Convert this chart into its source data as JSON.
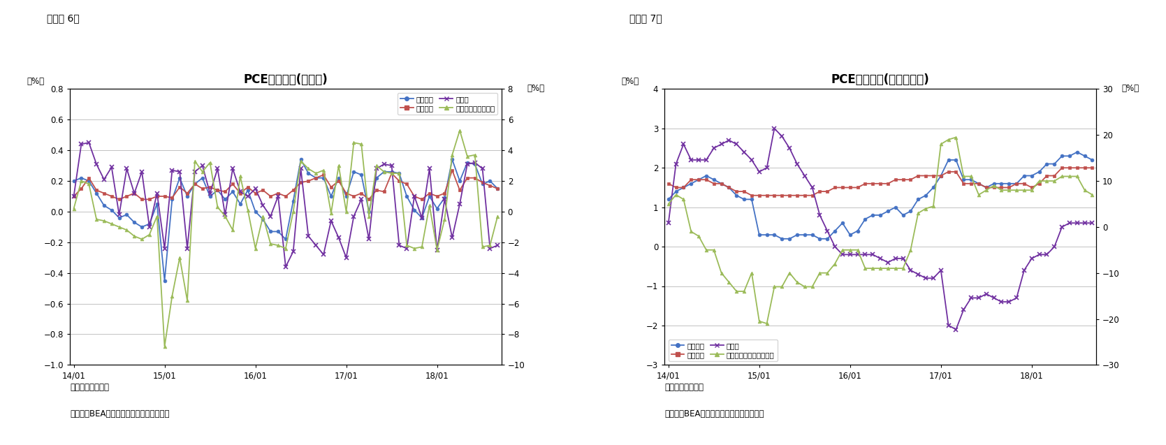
{
  "fig6_title": "PCE価格指数(前月比)",
  "fig7_title": "PCE価格指数(前年同月比)",
  "fig6_label": "（図表 6）",
  "fig7_label": "（図表 7）",
  "note": "（注）季節調整済",
  "source": "（資料）BEAよりニッセイ基礎研究所作成",
  "xlabel_ticks": [
    "14/01",
    "15/01",
    "16/01",
    "17/01",
    "18/01"
  ],
  "fig6": {
    "ylim_left": [
      -1.0,
      0.8
    ],
    "ylim_right": [
      -10,
      8
    ],
    "yticks_left": [
      -1.0,
      -0.8,
      -0.6,
      -0.4,
      -0.2,
      0.0,
      0.2,
      0.4,
      0.6,
      0.8
    ],
    "yticks_right": [
      -10,
      -8,
      -6,
      -4,
      -2,
      0,
      2,
      4,
      6,
      8
    ],
    "legend": [
      "総合指数",
      "コア指数",
      "食料品",
      "エネルギー（右軸）"
    ],
    "colors": [
      "#4472C4",
      "#C0504D",
      "#7030A0",
      "#9BBB59"
    ],
    "total": [
      0.2,
      0.22,
      0.2,
      0.12,
      0.04,
      0.01,
      -0.04,
      -0.02,
      -0.07,
      -0.1,
      -0.08,
      0.05,
      -0.45,
      0.08,
      0.22,
      0.1,
      0.18,
      0.22,
      0.1,
      0.14,
      0.08,
      0.13,
      0.05,
      0.14,
      0.0,
      -0.05,
      -0.13,
      -0.13,
      -0.18,
      0.07,
      0.34,
      0.25,
      0.22,
      0.22,
      0.1,
      0.22,
      0.1,
      0.26,
      0.24,
      0.0,
      0.22,
      0.26,
      0.26,
      0.25,
      0.1,
      0.01,
      -0.04,
      0.1,
      0.02,
      0.09,
      0.34,
      0.2,
      0.32,
      0.31,
      0.18,
      0.2,
      0.15
    ],
    "core": [
      0.1,
      0.15,
      0.22,
      0.14,
      0.12,
      0.1,
      0.08,
      0.1,
      0.12,
      0.08,
      0.08,
      0.1,
      0.1,
      0.09,
      0.16,
      0.12,
      0.18,
      0.15,
      0.16,
      0.14,
      0.13,
      0.18,
      0.12,
      0.16,
      0.12,
      0.14,
      0.1,
      0.12,
      0.1,
      0.14,
      0.19,
      0.2,
      0.22,
      0.24,
      0.16,
      0.2,
      0.12,
      0.1,
      0.12,
      0.08,
      0.14,
      0.13,
      0.25,
      0.2,
      0.18,
      0.1,
      0.08,
      0.12,
      0.1,
      0.12,
      0.27,
      0.14,
      0.22,
      0.22,
      0.19,
      0.17,
      0.15
    ],
    "food": [
      0.1,
      0.44,
      0.45,
      0.31,
      0.21,
      0.29,
      -0.02,
      0.28,
      0.12,
      0.26,
      -0.1,
      0.12,
      -0.24,
      0.27,
      0.26,
      -0.24,
      0.26,
      0.3,
      0.12,
      0.28,
      -0.02,
      0.28,
      0.13,
      0.1,
      0.15,
      0.04,
      -0.03,
      0.1,
      -0.36,
      -0.26,
      0.28,
      -0.16,
      -0.22,
      -0.28,
      -0.06,
      -0.17,
      -0.3,
      -0.03,
      0.08,
      -0.18,
      0.28,
      0.31,
      0.3,
      -0.22,
      -0.24,
      0.1,
      -0.04,
      0.28,
      -0.25,
      0.08,
      -0.17,
      0.05,
      0.31,
      0.32,
      0.28,
      -0.24,
      -0.22
    ],
    "energy_right": [
      0.2,
      2.0,
      1.8,
      -0.5,
      -0.6,
      -0.8,
      -1.0,
      -1.2,
      -1.6,
      -1.8,
      -1.5,
      -0.3,
      -8.8,
      -5.5,
      -3.0,
      -5.8,
      3.3,
      2.6,
      3.2,
      0.3,
      -0.3,
      -1.2,
      2.3,
      0.1,
      -2.4,
      -0.3,
      -2.1,
      -2.2,
      -2.4,
      0.0,
      3.3,
      2.8,
      2.5,
      2.7,
      -0.1,
      3.0,
      0.0,
      4.5,
      4.4,
      -0.3,
      3.0,
      2.6,
      2.5,
      2.5,
      -2.2,
      -2.4,
      -2.3,
      0.4,
      -2.5,
      -0.5,
      3.7,
      5.3,
      3.6,
      3.7,
      -2.3,
      -2.2,
      -0.3
    ]
  },
  "fig7": {
    "ylim_left": [
      -3,
      4
    ],
    "ylim_right": [
      -30,
      30
    ],
    "yticks_left": [
      -3,
      -2,
      -1,
      0,
      1,
      2,
      3,
      4
    ],
    "yticks_right": [
      -30,
      -20,
      -10,
      0,
      10,
      20,
      30
    ],
    "legend": [
      "総合指数",
      "コア指数",
      "食料品",
      "エネルギー関連（右軸）"
    ],
    "colors": [
      "#4472C4",
      "#C0504D",
      "#7030A0",
      "#9BBB59"
    ],
    "total": [
      1.2,
      1.4,
      1.5,
      1.6,
      1.7,
      1.8,
      1.7,
      1.6,
      1.5,
      1.3,
      1.2,
      1.2,
      0.3,
      0.3,
      0.3,
      0.2,
      0.2,
      0.3,
      0.3,
      0.3,
      0.2,
      0.2,
      0.4,
      0.6,
      0.3,
      0.4,
      0.7,
      0.8,
      0.8,
      0.9,
      1.0,
      0.8,
      0.9,
      1.2,
      1.3,
      1.5,
      1.8,
      2.2,
      2.2,
      1.7,
      1.7,
      1.6,
      1.5,
      1.6,
      1.6,
      1.6,
      1.6,
      1.8,
      1.8,
      1.9,
      2.1,
      2.1,
      2.3,
      2.3,
      2.4,
      2.3,
      2.2
    ],
    "core": [
      1.6,
      1.5,
      1.5,
      1.7,
      1.7,
      1.7,
      1.6,
      1.6,
      1.5,
      1.4,
      1.4,
      1.3,
      1.3,
      1.3,
      1.3,
      1.3,
      1.3,
      1.3,
      1.3,
      1.3,
      1.4,
      1.4,
      1.5,
      1.5,
      1.5,
      1.5,
      1.6,
      1.6,
      1.6,
      1.6,
      1.7,
      1.7,
      1.7,
      1.8,
      1.8,
      1.8,
      1.8,
      1.9,
      1.9,
      1.6,
      1.6,
      1.6,
      1.5,
      1.5,
      1.5,
      1.5,
      1.6,
      1.6,
      1.5,
      1.6,
      1.8,
      1.8,
      2.0,
      2.0,
      2.0,
      2.0,
      2.0
    ],
    "food": [
      0.6,
      2.1,
      2.6,
      2.2,
      2.2,
      2.2,
      2.5,
      2.6,
      2.7,
      2.6,
      2.4,
      2.2,
      1.9,
      2.0,
      3.0,
      2.8,
      2.5,
      2.1,
      1.8,
      1.5,
      0.8,
      0.4,
      0.0,
      -0.2,
      -0.2,
      -0.2,
      -0.2,
      -0.2,
      -0.3,
      -0.4,
      -0.3,
      -0.3,
      -0.6,
      -0.7,
      -0.8,
      -0.8,
      -0.6,
      -2.0,
      -2.1,
      -1.6,
      -1.3,
      -1.3,
      -1.2,
      -1.3,
      -1.4,
      -1.4,
      -1.3,
      -0.6,
      -0.3,
      -0.2,
      -0.2,
      0.0,
      0.5,
      0.6,
      0.6,
      0.6,
      0.6
    ],
    "energy_right": [
      5.0,
      7.0,
      6.0,
      -1.0,
      -2.0,
      -5.0,
      -5.0,
      -10.0,
      -12.0,
      -14.0,
      -14.0,
      -10.0,
      -20.5,
      -21.0,
      -13.0,
      -13.0,
      -10.0,
      -12.0,
      -13.0,
      -13.0,
      -10.0,
      -10.0,
      -8.0,
      -5.0,
      -5.0,
      -5.0,
      -9.0,
      -9.0,
      -9.0,
      -9.0,
      -9.0,
      -9.0,
      -5.0,
      3.0,
      4.0,
      4.5,
      18.0,
      19.0,
      19.5,
      11.0,
      11.0,
      7.0,
      8.0,
      9.0,
      8.0,
      8.0,
      8.0,
      8.0,
      8.0,
      10.0,
      10.0,
      10.0,
      11.0,
      11.0,
      11.0,
      8.0,
      7.0
    ]
  }
}
